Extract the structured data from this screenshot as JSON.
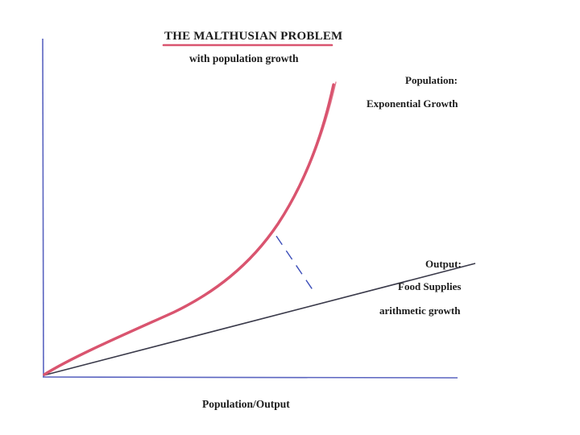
{
  "title": "THE MALTHUSIAN PROBLEM",
  "subtitle": "with population growth",
  "population_label": {
    "line1": "Population:",
    "line2": "Exponential Growth"
  },
  "output_label": {
    "line1": "Output:",
    "line2": "Food Supplies",
    "line3": "arithmetic growth"
  },
  "x_axis_label": "Population/Output",
  "colors": {
    "population_curve": "#d9546f",
    "title_underline": "#d9546f",
    "output_line": "#3a3a4a",
    "axis": "#5a64c0",
    "gap_marker": "#3b4db8",
    "text": "#1c1c1c"
  }
}
